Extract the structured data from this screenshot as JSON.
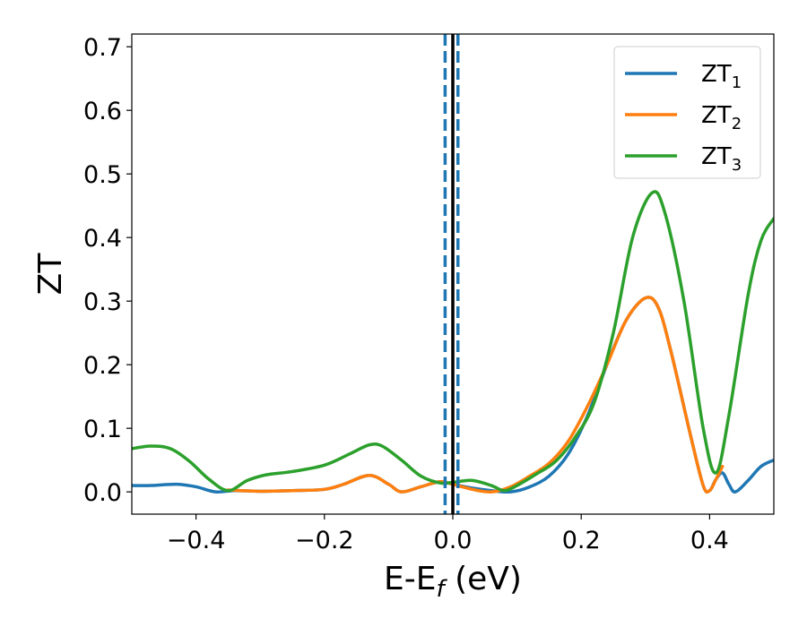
{
  "chart_data": {
    "type": "line",
    "title": "",
    "xlabel": "E-E_f (eV)",
    "xlabel_parts": {
      "base": "E-E",
      "sub": "f",
      "unit": " (eV)"
    },
    "ylabel": "ZT",
    "xlim": [
      -0.5,
      0.5
    ],
    "ylim": [
      -0.035,
      0.72
    ],
    "x_ticks": [
      -0.4,
      -0.2,
      0.0,
      0.2,
      0.4
    ],
    "x_tick_labels": [
      "−0.4",
      "−0.2",
      "0.0",
      "0.2",
      "0.4"
    ],
    "y_ticks": [
      0.0,
      0.1,
      0.2,
      0.3,
      0.4,
      0.5,
      0.6,
      0.7
    ],
    "y_tick_labels": [
      "0.0",
      "0.1",
      "0.2",
      "0.3",
      "0.4",
      "0.5",
      "0.6",
      "0.7"
    ],
    "grid": false,
    "legend_position": "top-right",
    "colors": {
      "ZT1": "#1f77b4",
      "ZT2": "#ff7f0e",
      "ZT3": "#2ca02c",
      "fermi": "#000000",
      "dashed": "#1f77b4"
    },
    "vertical_lines": [
      {
        "x": 0.0,
        "style": "solid",
        "color": "#000000"
      },
      {
        "x": -0.012,
        "style": "dashed",
        "color": "#1f77b4"
      },
      {
        "x": 0.008,
        "style": "dashed",
        "color": "#1f77b4"
      }
    ],
    "series": [
      {
        "name": "ZT_1",
        "label_base": "ZT",
        "label_sub": "1",
        "color": "#1f77b4",
        "points": [
          [
            -0.5,
            0.01
          ],
          [
            -0.47,
            0.01
          ],
          [
            -0.43,
            0.012
          ],
          [
            -0.4,
            0.008
          ],
          [
            -0.37,
            0.0
          ],
          [
            -0.34,
            0.002
          ],
          [
            -0.3,
            0.001
          ],
          [
            -0.25,
            0.002
          ],
          [
            -0.2,
            0.004
          ],
          [
            -0.17,
            0.012
          ],
          [
            -0.13,
            0.026
          ],
          [
            -0.1,
            0.012
          ],
          [
            -0.08,
            0.0
          ],
          [
            -0.05,
            0.008
          ],
          [
            -0.02,
            0.016
          ],
          [
            0.0,
            0.012
          ],
          [
            0.03,
            0.006
          ],
          [
            0.06,
            0.002
          ],
          [
            0.09,
            0.0
          ],
          [
            0.12,
            0.008
          ],
          [
            0.15,
            0.025
          ],
          [
            0.18,
            0.06
          ],
          [
            0.21,
            0.12
          ],
          [
            0.24,
            0.2
          ],
          [
            0.27,
            0.27
          ],
          [
            0.3,
            0.305
          ],
          [
            0.32,
            0.29
          ],
          [
            0.34,
            0.22
          ],
          [
            0.37,
            0.09
          ],
          [
            0.39,
            0.01
          ],
          [
            0.4,
            0.002
          ],
          [
            0.41,
            0.02
          ],
          [
            0.42,
            0.03
          ],
          [
            0.43,
            0.012
          ],
          [
            0.44,
            0.0
          ],
          [
            0.46,
            0.018
          ],
          [
            0.48,
            0.04
          ],
          [
            0.5,
            0.05
          ]
        ]
      },
      {
        "name": "ZT_2",
        "label_base": "ZT",
        "label_sub": "2",
        "color": "#ff7f0e",
        "points": [
          [
            -0.35,
            0.003
          ],
          [
            -0.3,
            0.001
          ],
          [
            -0.25,
            0.002
          ],
          [
            -0.2,
            0.004
          ],
          [
            -0.17,
            0.012
          ],
          [
            -0.13,
            0.026
          ],
          [
            -0.1,
            0.012
          ],
          [
            -0.08,
            0.0
          ],
          [
            -0.05,
            0.008
          ],
          [
            -0.02,
            0.016
          ],
          [
            0.0,
            0.012
          ],
          [
            0.03,
            0.004
          ],
          [
            0.06,
            0.0
          ],
          [
            0.09,
            0.008
          ],
          [
            0.12,
            0.025
          ],
          [
            0.15,
            0.045
          ],
          [
            0.18,
            0.08
          ],
          [
            0.21,
            0.135
          ],
          [
            0.24,
            0.2
          ],
          [
            0.27,
            0.27
          ],
          [
            0.3,
            0.305
          ],
          [
            0.32,
            0.29
          ],
          [
            0.34,
            0.22
          ],
          [
            0.37,
            0.09
          ],
          [
            0.39,
            0.01
          ],
          [
            0.4,
            0.002
          ],
          [
            0.41,
            0.02
          ],
          [
            0.42,
            0.04
          ]
        ]
      },
      {
        "name": "ZT_3",
        "label_base": "ZT",
        "label_sub": "3",
        "color": "#2ca02c",
        "points": [
          [
            -0.5,
            0.068
          ],
          [
            -0.47,
            0.072
          ],
          [
            -0.44,
            0.068
          ],
          [
            -0.41,
            0.048
          ],
          [
            -0.38,
            0.02
          ],
          [
            -0.35,
            0.002
          ],
          [
            -0.32,
            0.018
          ],
          [
            -0.29,
            0.027
          ],
          [
            -0.25,
            0.032
          ],
          [
            -0.2,
            0.042
          ],
          [
            -0.16,
            0.06
          ],
          [
            -0.13,
            0.074
          ],
          [
            -0.11,
            0.072
          ],
          [
            -0.08,
            0.05
          ],
          [
            -0.05,
            0.025
          ],
          [
            -0.02,
            0.014
          ],
          [
            0.0,
            0.015
          ],
          [
            0.03,
            0.018
          ],
          [
            0.06,
            0.01
          ],
          [
            0.08,
            0.002
          ],
          [
            0.1,
            0.01
          ],
          [
            0.13,
            0.028
          ],
          [
            0.16,
            0.048
          ],
          [
            0.19,
            0.085
          ],
          [
            0.22,
            0.14
          ],
          [
            0.25,
            0.25
          ],
          [
            0.28,
            0.4
          ],
          [
            0.31,
            0.47
          ],
          [
            0.33,
            0.44
          ],
          [
            0.36,
            0.3
          ],
          [
            0.39,
            0.1
          ],
          [
            0.41,
            0.03
          ],
          [
            0.43,
            0.12
          ],
          [
            0.46,
            0.31
          ],
          [
            0.48,
            0.395
          ],
          [
            0.5,
            0.43
          ]
        ]
      }
    ]
  }
}
